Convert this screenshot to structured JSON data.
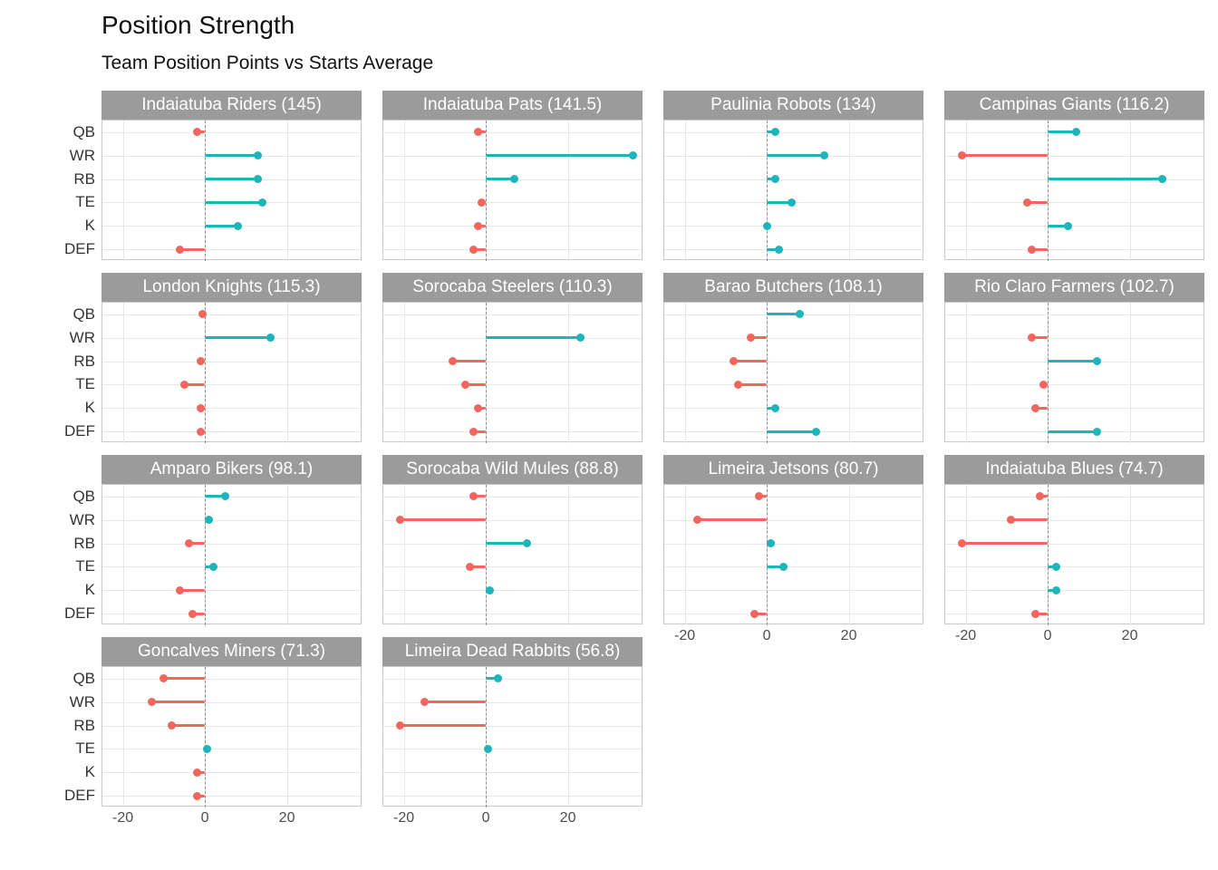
{
  "title": "Position Strength",
  "subtitle": "Team Position Points vs Starts Average",
  "chart_data": {
    "type": "bar",
    "variant": "lollipop",
    "orientation": "horizontal",
    "faceted": true,
    "facet_grid": {
      "cols": 4,
      "rows": 4
    },
    "categories": [
      "QB",
      "WR",
      "RB",
      "TE",
      "K",
      "DEF"
    ],
    "x_ticks": [
      -20,
      0,
      20
    ],
    "xlim": [
      -25,
      38
    ],
    "grid": true,
    "zero_baseline": "dashed",
    "colors": {
      "positive": "#1db5ba",
      "negative": "#f4655e",
      "strip_bg": "#9b9b9b",
      "strip_text": "#ffffff",
      "gridline": "#e8e8e8",
      "zero_line": "#8f8f8f"
    },
    "facets": [
      {
        "team": "Indaiatuba Riders",
        "total": 145,
        "label": "Indaiatuba Riders (145)",
        "values": [
          -2,
          13,
          13,
          14,
          8,
          -6
        ]
      },
      {
        "team": "Indaiatuba Pats",
        "total": 141.5,
        "label": "Indaiatuba Pats (141.5)",
        "values": [
          -2,
          36,
          7,
          -1,
          -2,
          -3
        ]
      },
      {
        "team": "Paulinia Robots",
        "total": 134,
        "label": "Paulinia Robots (134)",
        "values": [
          2,
          14,
          2,
          6,
          0,
          3
        ]
      },
      {
        "team": "Campinas Giants",
        "total": 116.2,
        "label": "Campinas Giants (116.2)",
        "values": [
          7,
          -21,
          28,
          -5,
          5,
          -4
        ]
      },
      {
        "team": "London Knights",
        "total": 115.3,
        "label": "London Knights (115.3)",
        "values": [
          -0.5,
          16,
          -1,
          -5,
          -1,
          -1
        ]
      },
      {
        "team": "Sorocaba Steelers",
        "total": 110.3,
        "label": "Sorocaba Steelers (110.3)",
        "values": [
          null,
          23,
          -8,
          -5,
          -2,
          -3
        ]
      },
      {
        "team": "Barao Butchers",
        "total": 108.1,
        "label": "Barao Butchers (108.1)",
        "values": [
          8,
          -4,
          -8,
          -7,
          2,
          12
        ]
      },
      {
        "team": "Rio Claro Farmers",
        "total": 102.7,
        "label": "Rio Claro Farmers (102.7)",
        "values": [
          null,
          -4,
          12,
          -1,
          -3,
          12
        ]
      },
      {
        "team": "Amparo Bikers",
        "total": 98.1,
        "label": "Amparo Bikers (98.1)",
        "values": [
          5,
          1,
          -4,
          2,
          -6,
          -3
        ]
      },
      {
        "team": "Sorocaba Wild Mules",
        "total": 88.8,
        "label": "Sorocaba Wild Mules (88.8)",
        "values": [
          -3,
          -21,
          10,
          -4,
          1,
          null
        ]
      },
      {
        "team": "Limeira Jetsons",
        "total": 80.7,
        "label": "Limeira Jetsons (80.7)",
        "values": [
          -2,
          -17,
          1,
          4,
          null,
          -3
        ]
      },
      {
        "team": "Indaiatuba Blues",
        "total": 74.7,
        "label": "Indaiatuba Blues (74.7)",
        "values": [
          -2,
          -9,
          -21,
          2,
          2,
          -3
        ]
      },
      {
        "team": "Goncalves Miners",
        "total": 71.3,
        "label": "Goncalves Miners (71.3)",
        "values": [
          -10,
          -13,
          -8,
          0.5,
          -2,
          -2
        ]
      },
      {
        "team": "Limeira Dead Rabbits",
        "total": 56.8,
        "label": "Limeira Dead Rabbits (56.8)",
        "values": [
          3,
          -15,
          -21,
          0.5,
          null,
          null
        ]
      }
    ]
  }
}
